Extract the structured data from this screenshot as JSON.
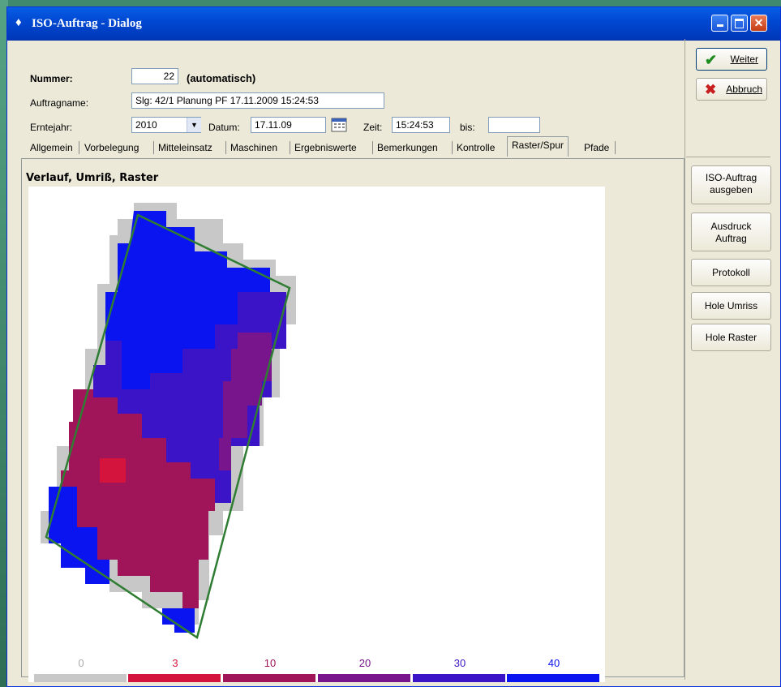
{
  "window": {
    "title": "ISO-Auftrag - Dialog"
  },
  "form": {
    "nummer_label": "Nummer:",
    "nummer_value": "22",
    "nummer_note": "(automatisch)",
    "auftragname_label": "Auftragname:",
    "auftragname_value": "Slg: 42/1 Planung PF 17.11.2009 15:24:53",
    "erntejahr_label": "Erntejahr:",
    "erntejahr_value": "2010",
    "datum_label": "Datum:",
    "datum_value": "17.11.09",
    "zeit_label": "Zeit:",
    "zeit_value": "15:24:53",
    "bis_label": "bis:",
    "bis_value": ""
  },
  "tabs": [
    {
      "label": "Allgemein"
    },
    {
      "label": "Vorbelegung"
    },
    {
      "label": "Mitteleinsatz"
    },
    {
      "label": "Maschinen"
    },
    {
      "label": "Ergebniswerte"
    },
    {
      "label": "Bemerkungen"
    },
    {
      "label": "Kontrolle"
    },
    {
      "label": "Raster/Spur",
      "active": true
    },
    {
      "label": "Pfade"
    }
  ],
  "panel": {
    "title": "Verlauf, Umriß, Raster"
  },
  "legend": [
    {
      "label": "0",
      "color": "#c8c8c8"
    },
    {
      "label": "3",
      "color": "#d4143c"
    },
    {
      "label": "10",
      "color": "#a0145a"
    },
    {
      "label": "20",
      "color": "#78148c"
    },
    {
      "label": "30",
      "color": "#3c14c8"
    },
    {
      "label": "40",
      "color": "#0a14f0"
    }
  ],
  "buttons": {
    "weiter": "Weiter",
    "abbruch": "Abbruch",
    "iso_ausgeben": [
      "ISO-Auftrag",
      "ausgeben"
    ],
    "ausdruck": [
      "Ausdruck",
      "Auftrag"
    ],
    "protokoll": "Protokoll",
    "hole_umriss": "Hole Umriss",
    "hole_raster": "Hole Raster"
  },
  "icons": {
    "title": "app-icon",
    "weiter": "checkmark-icon",
    "abbruch": "x-icon",
    "datum": "calendar-icon"
  }
}
